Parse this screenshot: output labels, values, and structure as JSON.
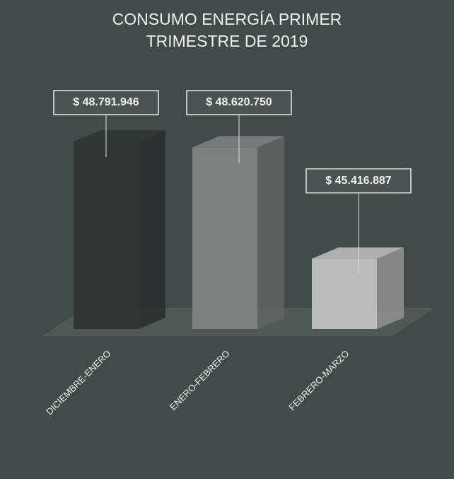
{
  "chart_data": {
    "type": "bar3d",
    "title": "CONSUMO ENERGÍA PRIMER TRIMESTRE DE 2019",
    "categories": [
      "DICIEMBRE-ENERO",
      "ENERO-FEBRERO",
      "FEBRERO-MARZO"
    ],
    "values": [
      48791946,
      48620750,
      45416887
    ],
    "value_labels": [
      "$ 48.791.946",
      "$ 48.620.750",
      "$ 45.416.887"
    ],
    "colors": [
      "#2f3634",
      "#7b817d",
      "#b9bdb9"
    ]
  }
}
